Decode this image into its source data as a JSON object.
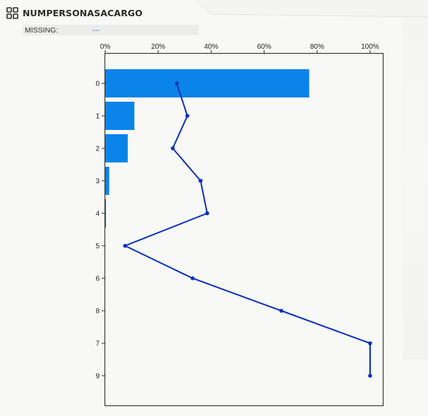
{
  "header": {
    "title": "NUMPERSONASACARGO",
    "icon": "grid-icon"
  },
  "missing": {
    "label": "MISSING:",
    "value": "---"
  },
  "colors": {
    "bar": "#0a84e8",
    "line": "#0a2fc0",
    "frame": "#222222",
    "text": "#222222"
  },
  "chart_data": {
    "type": "bar",
    "orientation": "horizontal",
    "categories": [
      "0",
      "1",
      "2",
      "3",
      "4",
      "5",
      "6",
      "8",
      "7",
      "9"
    ],
    "xticks": [
      "0%",
      "20%",
      "40%",
      "60%",
      "80%",
      "100%"
    ],
    "xlim": [
      0,
      105
    ],
    "series": [
      {
        "type": "bar",
        "values": [
          77,
          11,
          8.5,
          1.5,
          0.3,
          0,
          0,
          0,
          0,
          0
        ]
      },
      {
        "type": "line",
        "values": [
          27,
          31,
          25.5,
          36,
          38.5,
          7.5,
          33,
          66.5,
          100,
          100
        ]
      }
    ]
  }
}
